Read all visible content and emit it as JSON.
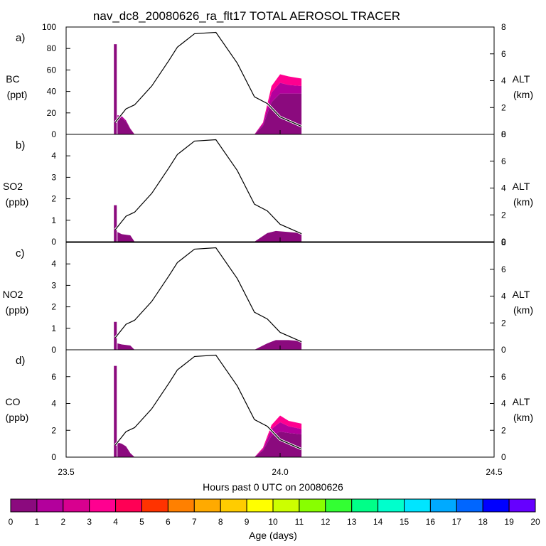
{
  "figure": {
    "title": "nav_dc8_20080626_ra_flt17 TOTAL AEROSOL TRACER",
    "xlabel": "Hours past 0 UTC on 20080626",
    "x_ticks": [
      "23.5",
      "24.0",
      "24.5"
    ],
    "colorbar_label": "Age (days)",
    "colorbar_ticks": [
      "0",
      "1",
      "2",
      "3",
      "4",
      "5",
      "6",
      "7",
      "8",
      "9",
      "10",
      "11",
      "12",
      "13",
      "14",
      "15",
      "16",
      "17",
      "18",
      "19",
      "20"
    ],
    "colorbar_colors": [
      "#8b0a7e",
      "#b3009c",
      "#d8008f",
      "#ff0090",
      "#ff0055",
      "#ff3300",
      "#ff8000",
      "#ffaa00",
      "#ffcc00",
      "#ffff00",
      "#ccff00",
      "#88ff00",
      "#33ff33",
      "#00ff88",
      "#00ffcc",
      "#00e5ff",
      "#00aaff",
      "#0066ff",
      "#0000ff",
      "#6600ff"
    ],
    "alt_label": "ALT",
    "alt_unit": "(km)"
  },
  "chart_data": [
    {
      "type": "area",
      "panel": "a)",
      "ylabel": "BC",
      "yunit": "(ppt)",
      "xlim": [
        23.5,
        24.5
      ],
      "ylim": [
        0,
        100
      ],
      "y_ticks": [
        "0",
        "20",
        "40",
        "60",
        "80",
        "100"
      ],
      "y2lim": [
        0,
        8
      ],
      "y2_ticks": [
        "0",
        "2",
        "4",
        "6",
        "8"
      ],
      "spike": {
        "x": 23.615,
        "value": 84
      },
      "series": [
        {
          "name": "0-1",
          "color": "#8b0a7e",
          "x": [
            23.62,
            23.63,
            23.64,
            23.65,
            23.66,
            23.94,
            23.96,
            23.98,
            24.0,
            24.02,
            24.05
          ],
          "values": [
            16,
            15,
            12,
            5,
            0,
            0,
            8,
            30,
            38,
            38,
            38
          ]
        },
        {
          "name": "1-2",
          "color": "#b3009c",
          "x": [
            23.62,
            23.63,
            23.64,
            23.65,
            23.66,
            23.94,
            23.96,
            23.98,
            24.0,
            24.02,
            24.05
          ],
          "values": [
            2,
            2,
            1,
            0.5,
            0,
            0,
            2,
            9,
            10,
            8,
            7
          ]
        },
        {
          "name": "2-3",
          "color": "#ff0090",
          "x": [
            23.94,
            23.96,
            23.98,
            24.0,
            24.02,
            24.05
          ],
          "values": [
            0,
            1,
            6,
            8,
            8,
            7
          ]
        }
      ],
      "alt_km": [
        [
          23.615,
          0.9
        ],
        [
          23.64,
          1.9
        ],
        [
          23.66,
          2.2
        ],
        [
          23.7,
          3.6
        ],
        [
          23.74,
          5.5
        ],
        [
          23.76,
          6.5
        ],
        [
          23.8,
          7.5
        ],
        [
          23.85,
          7.6
        ],
        [
          23.9,
          5.3
        ],
        [
          23.94,
          2.8
        ],
        [
          23.97,
          2.3
        ],
        [
          24.0,
          1.3
        ],
        [
          24.05,
          0.6
        ]
      ]
    },
    {
      "type": "area",
      "panel": "b)",
      "ylabel": "SO2",
      "yunit": "(ppb)",
      "xlim": [
        23.5,
        24.5
      ],
      "ylim": [
        0,
        5
      ],
      "y_ticks": [
        "0",
        "1",
        "2",
        "3",
        "4"
      ],
      "y2lim": [
        0,
        8
      ],
      "y2_ticks": [
        "0",
        "2",
        "4",
        "6",
        "8"
      ],
      "spike": {
        "x": 23.615,
        "value": 1.7
      },
      "series": [
        {
          "name": "0-1",
          "color": "#8b0a7e",
          "x": [
            23.62,
            23.63,
            23.65,
            23.66,
            23.94,
            23.97,
            23.99,
            24.02,
            24.05
          ],
          "values": [
            0.45,
            0.35,
            0.3,
            0,
            0,
            0.4,
            0.5,
            0.45,
            0.4
          ]
        }
      ],
      "alt_km": [
        [
          23.615,
          0.9
        ],
        [
          23.64,
          1.9
        ],
        [
          23.66,
          2.2
        ],
        [
          23.7,
          3.6
        ],
        [
          23.74,
          5.5
        ],
        [
          23.76,
          6.5
        ],
        [
          23.8,
          7.5
        ],
        [
          23.85,
          7.6
        ],
        [
          23.9,
          5.3
        ],
        [
          23.94,
          2.8
        ],
        [
          23.97,
          2.3
        ],
        [
          24.0,
          1.3
        ],
        [
          24.05,
          0.6
        ]
      ]
    },
    {
      "type": "area",
      "panel": "c)",
      "ylabel": "NO2",
      "yunit": "(ppb)",
      "xlim": [
        23.5,
        24.5
      ],
      "ylim": [
        0,
        5
      ],
      "y_ticks": [
        "0",
        "1",
        "2",
        "3",
        "4"
      ],
      "y2lim": [
        0,
        8
      ],
      "y2_ticks": [
        "0",
        "2",
        "4",
        "6",
        "8"
      ],
      "spike": {
        "x": 23.615,
        "value": 1.3
      },
      "series": [
        {
          "name": "0-1",
          "color": "#8b0a7e",
          "x": [
            23.62,
            23.63,
            23.65,
            23.66,
            23.94,
            23.97,
            23.99,
            24.02,
            24.05
          ],
          "values": [
            0.3,
            0.25,
            0.2,
            0,
            0,
            0.3,
            0.45,
            0.45,
            0.4
          ]
        }
      ],
      "alt_km": [
        [
          23.615,
          0.9
        ],
        [
          23.64,
          1.9
        ],
        [
          23.66,
          2.2
        ],
        [
          23.7,
          3.6
        ],
        [
          23.74,
          5.5
        ],
        [
          23.76,
          6.5
        ],
        [
          23.8,
          7.5
        ],
        [
          23.85,
          7.6
        ],
        [
          23.9,
          5.3
        ],
        [
          23.94,
          2.8
        ],
        [
          23.97,
          2.3
        ],
        [
          24.0,
          1.3
        ],
        [
          24.05,
          0.6
        ]
      ]
    },
    {
      "type": "area",
      "panel": "d)",
      "ylabel": "CO",
      "yunit": "(ppb)",
      "xlim": [
        23.5,
        24.5
      ],
      "ylim": [
        0,
        8
      ],
      "y_ticks": [
        "0",
        "2",
        "4",
        "6"
      ],
      "y2lim": [
        0,
        8
      ],
      "y2_ticks": [
        "0",
        "2",
        "4",
        "6"
      ],
      "spike": {
        "x": 23.615,
        "value": 6.8
      },
      "series": [
        {
          "name": "0-1",
          "color": "#8b0a7e",
          "x": [
            23.62,
            23.63,
            23.64,
            23.65,
            23.66,
            23.94,
            23.96,
            23.98,
            24.0,
            24.02,
            24.05
          ],
          "values": [
            1.1,
            1.0,
            0.8,
            0.3,
            0,
            0,
            0.5,
            1.6,
            1.9,
            1.8,
            1.7
          ]
        },
        {
          "name": "1-2",
          "color": "#b3009c",
          "x": [
            23.94,
            23.96,
            23.98,
            24.0,
            24.02,
            24.05
          ],
          "values": [
            0,
            0.1,
            0.5,
            0.7,
            0.5,
            0.4
          ]
        },
        {
          "name": "2-3",
          "color": "#ff0090",
          "x": [
            23.94,
            23.96,
            23.98,
            24.0,
            24.02,
            24.05
          ],
          "values": [
            0,
            0.1,
            0.3,
            0.5,
            0.4,
            0.4
          ]
        }
      ],
      "alt_km": [
        [
          23.615,
          0.9
        ],
        [
          23.64,
          1.9
        ],
        [
          23.66,
          2.2
        ],
        [
          23.7,
          3.6
        ],
        [
          23.74,
          5.5
        ],
        [
          23.76,
          6.5
        ],
        [
          23.8,
          7.5
        ],
        [
          23.85,
          7.6
        ],
        [
          23.9,
          5.3
        ],
        [
          23.94,
          2.8
        ],
        [
          23.97,
          2.3
        ],
        [
          24.0,
          1.3
        ],
        [
          24.05,
          0.6
        ]
      ]
    }
  ]
}
